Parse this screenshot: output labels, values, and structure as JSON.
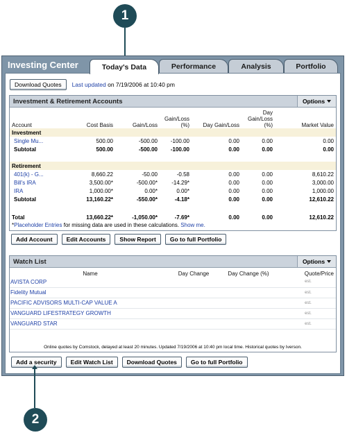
{
  "callouts": {
    "one": "1",
    "two": "2"
  },
  "app_title": "Investing Center",
  "tabs": [
    {
      "label": "Today's Data",
      "active": true
    },
    {
      "label": "Performance",
      "active": false
    },
    {
      "label": "Analysis",
      "active": false
    },
    {
      "label": "Portfolio",
      "active": false
    }
  ],
  "toolbar": {
    "download_label": "Download Quotes",
    "last_updated_link": "Last updated",
    "last_updated_text": "on 7/19/2006 at 10:40 pm"
  },
  "accounts": {
    "title": "Investment & Retirement Accounts",
    "options_label": "Options",
    "columns": [
      "Account",
      "Cost Basis",
      "Gain/Loss",
      "Gain/Loss (%)",
      "Day Gain/Loss",
      "Day Gain/Loss (%)",
      "Market Value"
    ],
    "groups": [
      {
        "name": "Investment",
        "rows": [
          {
            "account": "Single Mu...",
            "cost": "500.00",
            "gain": "-500.00",
            "gain_pct": "-100.00",
            "day": "0.00",
            "day_pct": "0.00",
            "value": "0.00"
          }
        ],
        "subtotal": {
          "label": "Subtotal",
          "cost": "500.00",
          "gain": "-500.00",
          "gain_pct": "-100.00",
          "day": "0.00",
          "day_pct": "0.00",
          "value": "0.00"
        }
      },
      {
        "name": "Retirement",
        "rows": [
          {
            "account": "401(k) - G...",
            "cost": "8,660.22",
            "gain": "-50.00",
            "gain_pct": "-0.58",
            "day": "0.00",
            "day_pct": "0.00",
            "value": "8,610.22"
          },
          {
            "account": "Bill's IRA",
            "cost": "3,500.00*",
            "gain": "-500.00*",
            "gain_pct": "-14.29*",
            "day": "0.00",
            "day_pct": "0.00",
            "value": "3,000.00"
          },
          {
            "account": "IRA",
            "cost": "1,000.00*",
            "gain": "0.00*",
            "gain_pct": "0.00*",
            "day": "0.00",
            "day_pct": "0.00",
            "value": "1,000.00"
          }
        ],
        "subtotal": {
          "label": "Subtotal",
          "cost": "13,160.22*",
          "gain": "-550.00*",
          "gain_pct": "-4.18*",
          "day": "0.00",
          "day_pct": "0.00",
          "value": "12,610.22"
        }
      }
    ],
    "total": {
      "label": "Total",
      "cost": "13,660.22*",
      "gain": "-1,050.00*",
      "gain_pct": "-7.69*",
      "day": "0.00",
      "day_pct": "0.00",
      "value": "12,610.22"
    },
    "footnote_star": "*",
    "footnote_link": "Placeholder Entries",
    "footnote_text": "for missing data are used in these calculations.",
    "footnote_show": "Show me.",
    "buttons": [
      "Add Account",
      "Edit Accounts",
      "Show Report",
      "Go to full Portfolio"
    ]
  },
  "watchlist": {
    "title": "Watch List",
    "options_label": "Options",
    "columns": [
      "Name",
      "Day Change",
      "Day Change (%)",
      "Quote/Price"
    ],
    "rows": [
      {
        "name": "AVISTA CORP",
        "est": "est."
      },
      {
        "name": "Fidelity Mutual",
        "est": "est."
      },
      {
        "name": "PACIFIC ADVISORS MULTI-CAP VALUE A",
        "est": "est."
      },
      {
        "name": "VANGUARD LIFESTRATEGY GROWTH",
        "est": "est."
      },
      {
        "name": "VANGUARD STAR",
        "est": "est."
      }
    ],
    "note": "Online quotes by Comstock, delayed at least 20 minutes. Updated 7/19/2006 at 10:40 pm local time. Historical quotes by Iverson.",
    "buttons": [
      "Add a security",
      "Edit Watch List",
      "Download Quotes",
      "Go to full Portfolio"
    ]
  },
  "colors": {
    "callout": "#1f4b57",
    "frame": "#7f95a8",
    "link": "#1d3fa6",
    "section_bg": "#f7f1da"
  }
}
